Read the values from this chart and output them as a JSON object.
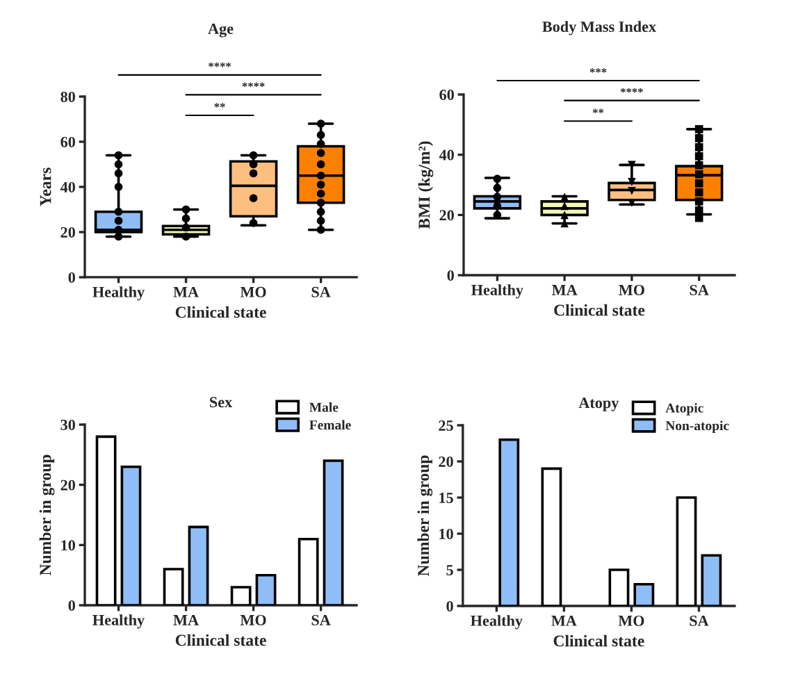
{
  "chart_data": [
    {
      "type": "box",
      "title": "Age",
      "xlabel": "Clinical state",
      "ylabel": "Years",
      "categories": [
        "Healthy",
        "MA",
        "MO",
        "SA"
      ],
      "boxes": [
        {
          "low": 18,
          "q1": 20,
          "median": 21,
          "q3": 29,
          "high": 54
        },
        {
          "low": 18,
          "q1": 19,
          "median": 21,
          "q3": 22.7,
          "high": 30
        },
        {
          "low": 23,
          "q1": 27,
          "median": 40.5,
          "q3": 51.3,
          "high": 54
        },
        {
          "low": 21,
          "q1": 33,
          "median": 45,
          "q3": 58,
          "high": 68
        }
      ],
      "colors": [
        "#8fbcf5",
        "#f2f7b4",
        "#fcbf80",
        "#fc8000"
      ],
      "series": [
        {
          "type": "scatter",
          "color": "#000000",
          "marker": "circle",
          "x": [
            "Healthy",
            "Healthy",
            "Healthy",
            "Healthy",
            "Healthy",
            "Healthy",
            "Healthy",
            "Healthy"
          ],
          "values": [
            54,
            50,
            46,
            40,
            29,
            25,
            21,
            18
          ]
        },
        {
          "type": "scatter",
          "color": "#000000",
          "marker": "circle",
          "x": [
            "MA",
            "MA",
            "MA",
            "MA"
          ],
          "values": [
            30,
            26,
            22,
            18
          ]
        },
        {
          "type": "scatter",
          "color": "#000000",
          "marker": "circle",
          "x": [
            "MO",
            "MO",
            "MO",
            "MO",
            "MO"
          ],
          "values": [
            54,
            50,
            46,
            35,
            24
          ]
        },
        {
          "type": "scatter",
          "color": "#000000",
          "marker": "circle",
          "x": [
            "SA",
            "SA",
            "SA",
            "SA",
            "SA",
            "SA",
            "SA",
            "SA",
            "SA",
            "SA",
            "SA",
            "SA"
          ],
          "values": [
            68,
            63,
            59,
            55,
            50,
            45,
            41,
            37,
            33,
            29,
            25,
            21
          ]
        }
      ],
      "ylim": [
        0,
        80
      ],
      "yticks": [
        0,
        20,
        40,
        60,
        80
      ],
      "annotations": [
        "****",
        "****",
        "**"
      ]
    },
    {
      "type": "box",
      "title": "Body Mass Index",
      "xlabel": "Clinical state",
      "ylabel": "BMI (kg/m²)",
      "categories": [
        "Healthy",
        "MA",
        "MO",
        "SA"
      ],
      "boxes": [
        {
          "low": 18.9,
          "q1": 22.2,
          "median": 24.5,
          "q3": 26.2,
          "high": 32.3
        },
        {
          "low": 17.2,
          "q1": 20,
          "median": 22.2,
          "q3": 24.5,
          "high": 26.2
        },
        {
          "low": 23.5,
          "q1": 25,
          "median": 28.3,
          "q3": 30.6,
          "high": 36.6
        },
        {
          "low": 20.2,
          "q1": 25,
          "median": 33.2,
          "q3": 36.2,
          "high": 48.5
        }
      ],
      "colors": [
        "#8fbcf5",
        "#f2f7b4",
        "#fcbf80",
        "#fc8000"
      ],
      "series": [
        {
          "type": "scatter",
          "color": "#000000",
          "marker": "circle",
          "x": [
            "Healthy",
            "Healthy",
            "Healthy",
            "Healthy",
            "Healthy"
          ],
          "values": [
            32,
            29,
            26,
            23,
            20
          ]
        },
        {
          "type": "scatter",
          "color": "#000000",
          "marker": "triangle",
          "x": [
            "MA",
            "MA",
            "MA",
            "MA"
          ],
          "values": [
            26,
            23,
            20,
            17.2
          ]
        },
        {
          "type": "scatter",
          "color": "#000000",
          "marker": "triangle_down",
          "x": [
            "MO",
            "MO",
            "MO",
            "MO"
          ],
          "values": [
            36.6,
            31,
            28,
            24
          ]
        },
        {
          "type": "scatter",
          "color": "#000000",
          "marker": "square",
          "x": [
            "SA",
            "SA",
            "SA",
            "SA",
            "SA",
            "SA",
            "SA",
            "SA",
            "SA",
            "SA",
            "SA"
          ],
          "values": [
            48.5,
            45.5,
            42.5,
            39.5,
            36.5,
            33.5,
            30.5,
            27.5,
            24.5,
            21.5,
            19
          ]
        }
      ],
      "ylim": [
        0,
        60
      ],
      "yticks": [
        0,
        20,
        40,
        60
      ],
      "annotations": [
        "***",
        "****",
        "**"
      ]
    },
    {
      "type": "bar",
      "title": "Sex",
      "xlabel": "Clinical state",
      "ylabel": "Number in group",
      "categories": [
        "Healthy",
        "MA",
        "MO",
        "SA"
      ],
      "series": [
        {
          "name": "Male",
          "color": "#ffffff",
          "values": [
            28,
            6,
            3,
            11
          ]
        },
        {
          "name": "Female",
          "color": "#8fbdf7",
          "values": [
            23,
            13,
            5,
            24
          ]
        }
      ],
      "ylim": [
        0,
        30
      ],
      "yticks": [
        0,
        10,
        20,
        30
      ],
      "legend": "top right"
    },
    {
      "type": "bar",
      "title": "Atopy",
      "xlabel": "Clinical state",
      "ylabel": "Number in group",
      "categories": [
        "Healthy",
        "MA",
        "MO",
        "SA"
      ],
      "series": [
        {
          "name": "Atopic",
          "color": "#ffffff",
          "values": [
            0,
            19,
            5,
            15
          ]
        },
        {
          "name": "Non-atopic",
          "color": "#8fbdf7",
          "values": [
            23,
            0,
            3,
            7
          ]
        }
      ],
      "ylim": [
        0,
        25
      ],
      "yticks": [
        0,
        5,
        10,
        15,
        20,
        25
      ],
      "legend": "top right"
    }
  ]
}
